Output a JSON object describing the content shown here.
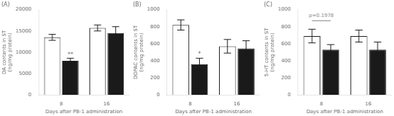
{
  "chart_data": [
    {
      "type": "bar",
      "title": "(A)",
      "x_label": "Days after PB-1 administration",
      "y_label": "DA contents in ST\n(ng/mg protein)",
      "categories": [
        "8",
        "16"
      ],
      "series": [
        {
          "color": "#FFFFFF",
          "values": [
            13500,
            15700
          ],
          "errors": [
            700,
            700
          ]
        },
        {
          "color": "#1a1a1a",
          "values": [
            8000,
            14500
          ],
          "errors": [
            600,
            1500
          ],
          "annotations": [
            {
              "category": "8",
              "y": 8700,
              "text": "**"
            }
          ]
        }
      ],
      "ylim": [
        0,
        20000
      ],
      "yticks": [
        0,
        5000,
        10000,
        15000,
        20000
      ],
      "grid": false
    },
    {
      "type": "bar",
      "title": "(B)",
      "x_label": "Days after PB-1 administration",
      "y_label": "DOPAC contents in ST\n(ng/mg protein)",
      "categories": [
        "8",
        "16"
      ],
      "series": [
        {
          "color": "#FFFFFF",
          "values": [
            820,
            570
          ],
          "errors": [
            60,
            80
          ]
        },
        {
          "color": "#1a1a1a",
          "values": [
            360,
            545
          ],
          "errors": [
            70,
            90
          ],
          "annotations": [
            {
              "category": "8",
              "y": 440,
              "text": "*"
            }
          ]
        }
      ],
      "ylim": [
        0,
        1000
      ],
      "yticks": [
        0,
        200,
        400,
        600,
        800,
        1000
      ],
      "grid": false
    },
    {
      "type": "bar",
      "title": "(C)",
      "x_label": "Days after PB-1 administration",
      "y_label": "5-HT contents in ST\n(ng/mg protein)",
      "categories": [
        "8",
        "16"
      ],
      "series": [
        {
          "color": "#FFFFFF",
          "values": [
            690,
            690
          ],
          "errors": [
            80,
            70
          ]
        },
        {
          "color": "#1a1a1a",
          "values": [
            530,
            530
          ],
          "errors": [
            60,
            90
          ]
        }
      ],
      "annotations": [
        {
          "category": "8",
          "y": 900,
          "line_y": 870,
          "text": "p=0.1978",
          "color": "gray"
        }
      ],
      "ylim": [
        0,
        1000
      ],
      "yticks": [
        0,
        200,
        400,
        600,
        800,
        1000
      ],
      "grid": false
    }
  ]
}
